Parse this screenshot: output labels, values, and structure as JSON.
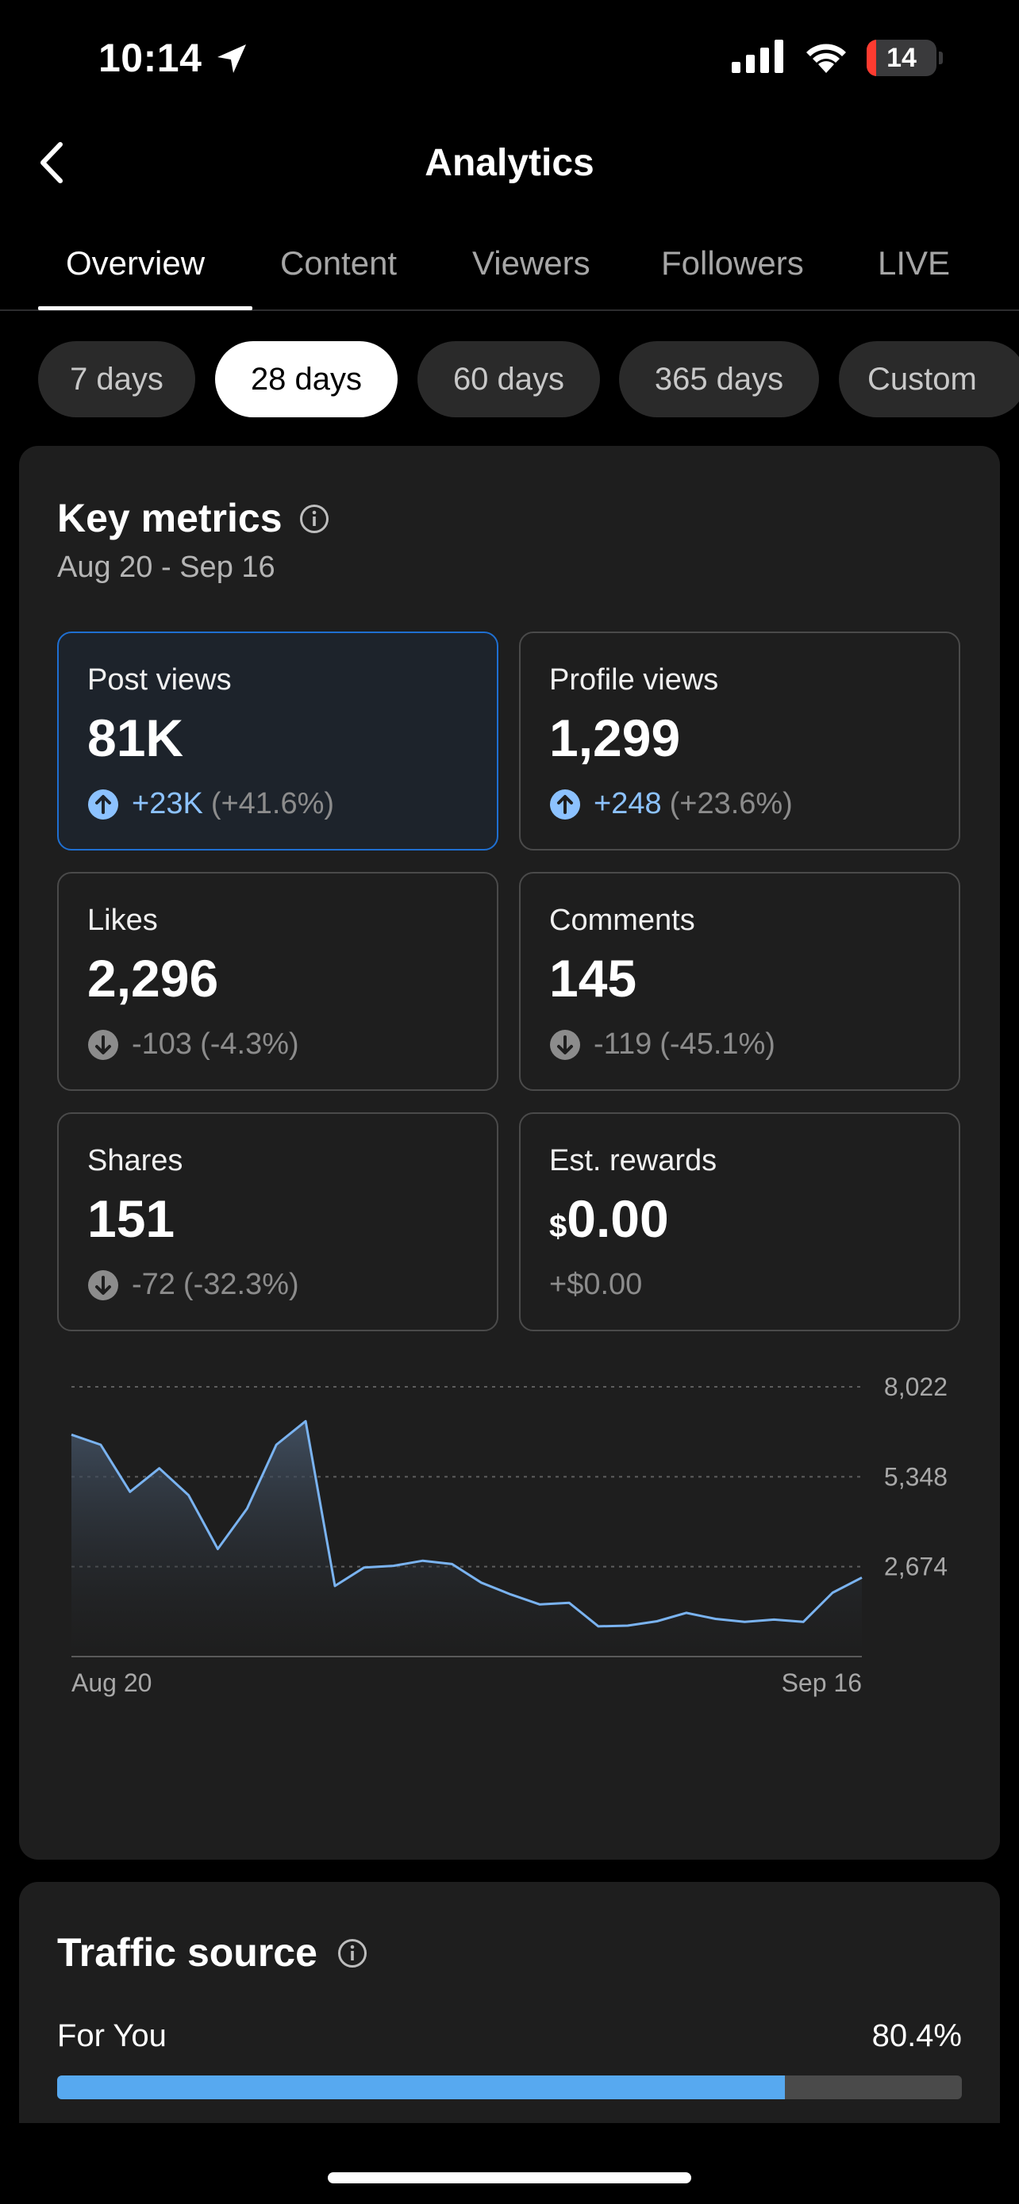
{
  "status_bar": {
    "time": "10:14",
    "battery": "14",
    "battery_level": 0.14
  },
  "header": {
    "title": "Analytics"
  },
  "tabs": [
    {
      "label": "Overview",
      "active": true
    },
    {
      "label": "Content"
    },
    {
      "label": "Viewers"
    },
    {
      "label": "Followers"
    },
    {
      "label": "LIVE"
    }
  ],
  "periods": [
    {
      "label": "7 days"
    },
    {
      "label": "28 days",
      "active": true
    },
    {
      "label": "60 days"
    },
    {
      "label": "365 days"
    },
    {
      "label": "Custom"
    }
  ],
  "key_metrics": {
    "title": "Key metrics",
    "date_range": "Aug 20 - Sep 16",
    "cards": [
      {
        "label": "Post views",
        "value": "81K",
        "delta_value": "+23K",
        "delta_pct": "(+41.6%)",
        "direction": "up",
        "selected": true
      },
      {
        "label": "Profile views",
        "value": "1,299",
        "delta_value": "+248",
        "delta_pct": "(+23.6%)",
        "direction": "up"
      },
      {
        "label": "Likes",
        "value": "2,296",
        "delta_value": "-103",
        "delta_pct": "(-4.3%)",
        "direction": "down"
      },
      {
        "label": "Comments",
        "value": "145",
        "delta_value": "-119",
        "delta_pct": "(-45.1%)",
        "direction": "down"
      },
      {
        "label": "Shares",
        "value": "151",
        "delta_value": "-72",
        "delta_pct": "(-32.3%)",
        "direction": "down"
      },
      {
        "label": "Est. rewards",
        "currency": "$",
        "value": "0.00",
        "delta_text": "+$0.00",
        "direction": "none"
      }
    ]
  },
  "chart_data": {
    "type": "area",
    "x_start_label": "Aug 20",
    "x_end_label": "Sep 16",
    "ylim": [
      0,
      8022
    ],
    "y_ticks": [
      "8,022",
      "5,348",
      "2,674"
    ],
    "y_tick_values": [
      8022,
      5348,
      2674
    ],
    "values": [
      6600,
      6300,
      4900,
      5600,
      4800,
      3200,
      4400,
      6300,
      7000,
      2100,
      2650,
      2700,
      2850,
      2750,
      2200,
      1850,
      1550,
      1600,
      900,
      920,
      1050,
      1300,
      1120,
      1030,
      1100,
      1030,
      1900,
      2350
    ],
    "color": "#7ab3f0"
  },
  "traffic_source": {
    "title": "Traffic source",
    "items": [
      {
        "label": "For You",
        "value": "80.4%",
        "fraction": 0.804
      }
    ]
  }
}
